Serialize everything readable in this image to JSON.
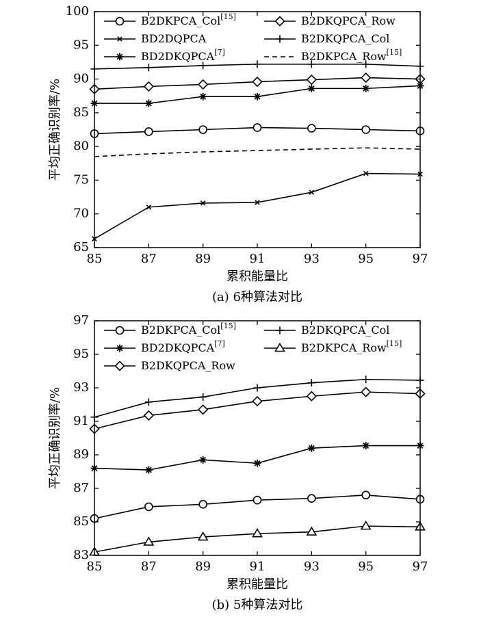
{
  "chart_data": [
    {
      "type": "line",
      "caption": "(a) 6种算法对比",
      "xlabel": "累积能量比",
      "ylabel": "平均正确识别率/%",
      "x": [
        85,
        87,
        89,
        91,
        93,
        95,
        97
      ],
      "xlim": [
        85,
        97
      ],
      "ylim": [
        65,
        100
      ],
      "xticks": [
        85,
        87,
        89,
        91,
        93,
        95,
        97
      ],
      "yticks": [
        65,
        70,
        75,
        80,
        85,
        90,
        95,
        100
      ],
      "legend": "top",
      "grid": false,
      "series": [
        {
          "name": "B2DKPCA_Col",
          "ref": "[15]",
          "marker": "circle",
          "dash": "none",
          "values": [
            81.9,
            82.2,
            82.5,
            82.8,
            82.7,
            82.5,
            82.3
          ]
        },
        {
          "name": "B2DKQPCA_Row",
          "ref": "",
          "marker": "diamond",
          "dash": "none",
          "values": [
            88.5,
            88.9,
            89.2,
            89.6,
            89.9,
            90.2,
            90.0
          ]
        },
        {
          "name": "BD2DQPCA",
          "ref": "",
          "marker": "x",
          "dash": "none",
          "values": [
            66.3,
            71.0,
            71.6,
            71.7,
            73.2,
            76.0,
            75.9
          ]
        },
        {
          "name": "B2DKQPCA_Col",
          "ref": "",
          "marker": "plus",
          "dash": "none",
          "values": [
            91.5,
            91.7,
            92.0,
            92.2,
            92.2,
            92.2,
            91.9
          ]
        },
        {
          "name": "BD2DKQPCA",
          "ref": "[7]",
          "marker": "star",
          "dash": "none",
          "values": [
            86.4,
            86.4,
            87.4,
            87.4,
            88.6,
            88.6,
            89.0
          ]
        },
        {
          "name": "B2DKPCA_Row",
          "ref": "[15]",
          "marker": "none",
          "dash": "dashed",
          "values": [
            78.5,
            78.9,
            79.2,
            79.4,
            79.6,
            79.8,
            79.6
          ]
        }
      ]
    },
    {
      "type": "line",
      "caption": "(b) 5种算法对比",
      "xlabel": "累积能量比",
      "ylabel": "平均正确识别率/%",
      "x": [
        85,
        87,
        89,
        91,
        93,
        95,
        97
      ],
      "xlim": [
        85,
        97
      ],
      "ylim": [
        83,
        97
      ],
      "xticks": [
        85,
        87,
        89,
        91,
        93,
        95,
        97
      ],
      "yticks": [
        83,
        85,
        87,
        89,
        91,
        93,
        95,
        97
      ],
      "legend": "top",
      "grid": false,
      "series": [
        {
          "name": "B2DKPCA_Col",
          "ref": "[15]",
          "marker": "circle",
          "dash": "none",
          "values": [
            85.2,
            85.9,
            86.05,
            86.3,
            86.4,
            86.6,
            86.35
          ]
        },
        {
          "name": "B2DKQPCA_Col",
          "ref": "",
          "marker": "plus",
          "dash": "none",
          "values": [
            91.25,
            92.15,
            92.45,
            93.0,
            93.3,
            93.5,
            93.45
          ]
        },
        {
          "name": "BD2DKQPCA",
          "ref": "[7]",
          "marker": "star",
          "dash": "none",
          "values": [
            88.2,
            88.1,
            88.7,
            88.5,
            89.4,
            89.55,
            89.55
          ]
        },
        {
          "name": "B2DKPCA_Row",
          "ref": "[15]",
          "marker": "triangle",
          "dash": "none",
          "values": [
            83.2,
            83.8,
            84.1,
            84.3,
            84.4,
            84.75,
            84.7
          ]
        },
        {
          "name": "B2DKQPCA_Row",
          "ref": "",
          "marker": "diamond",
          "dash": "none",
          "values": [
            90.55,
            91.35,
            91.7,
            92.2,
            92.5,
            92.75,
            92.65
          ]
        }
      ]
    }
  ]
}
